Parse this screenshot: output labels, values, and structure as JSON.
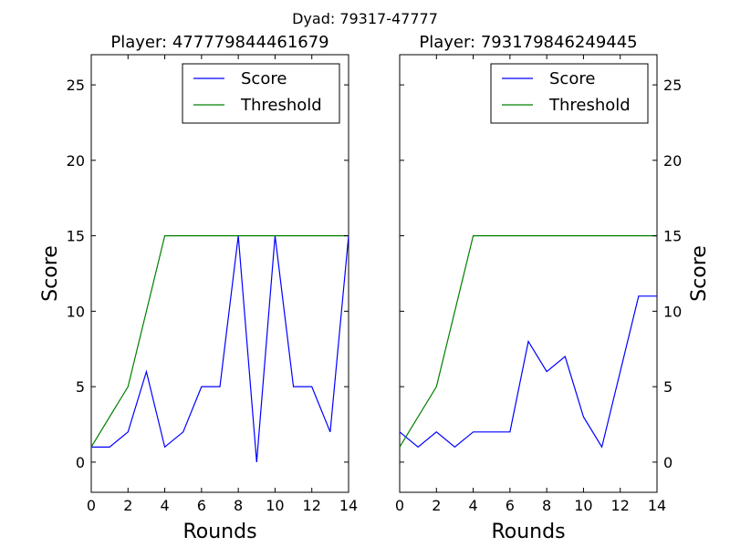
{
  "figure": {
    "suptitle": "Dyad: 79317-47777"
  },
  "chart_data": [
    {
      "type": "line",
      "title": "Player: 477779844461679",
      "xlabel": "Rounds",
      "ylabel": "Score",
      "ylabel_side": "left",
      "xlim": [
        0,
        14
      ],
      "ylim": [
        -2,
        27
      ],
      "xticks": [
        0,
        2,
        4,
        6,
        8,
        10,
        12,
        14
      ],
      "yticks": [
        0,
        5,
        10,
        15,
        20,
        25
      ],
      "grid": false,
      "legend": "top-right",
      "series": [
        {
          "name": "Score",
          "color": "#0000ff",
          "x": [
            0,
            1,
            2,
            3,
            4,
            5,
            6,
            7,
            8,
            9,
            10,
            11,
            12,
            13,
            14
          ],
          "y": [
            1,
            1,
            2,
            6,
            1,
            2,
            5,
            5,
            15,
            0,
            15,
            5,
            5,
            2,
            15
          ]
        },
        {
          "name": "Threshold",
          "color": "#008000",
          "x": [
            0,
            2,
            4,
            5,
            6,
            7,
            8,
            9,
            10,
            11,
            12,
            13,
            14
          ],
          "y": [
            1,
            5,
            15,
            15,
            15,
            15,
            15,
            15,
            15,
            15,
            15,
            15,
            15
          ]
        }
      ]
    },
    {
      "type": "line",
      "title": "Player: 793179846249445",
      "xlabel": "Rounds",
      "ylabel": "Score",
      "ylabel_side": "right",
      "xlim": [
        0,
        14
      ],
      "ylim": [
        -2,
        27
      ],
      "xticks": [
        0,
        2,
        4,
        6,
        8,
        10,
        12,
        14
      ],
      "yticks": [
        0,
        5,
        10,
        15,
        20,
        25
      ],
      "grid": false,
      "legend": "top-right",
      "series": [
        {
          "name": "Score",
          "color": "#0000ff",
          "x": [
            0,
            1,
            2,
            3,
            4,
            5,
            6,
            7,
            8,
            9,
            10,
            11,
            12,
            13,
            14
          ],
          "y": [
            2,
            1,
            2,
            1,
            2,
            2,
            2,
            8,
            6,
            7,
            3,
            1,
            6,
            11,
            11
          ]
        },
        {
          "name": "Threshold",
          "color": "#008000",
          "x": [
            0,
            2,
            4,
            5,
            6,
            7,
            8,
            9,
            10,
            11,
            12,
            13,
            14
          ],
          "y": [
            1,
            5,
            15,
            15,
            15,
            15,
            15,
            15,
            15,
            15,
            15,
            15,
            15
          ]
        }
      ]
    }
  ]
}
